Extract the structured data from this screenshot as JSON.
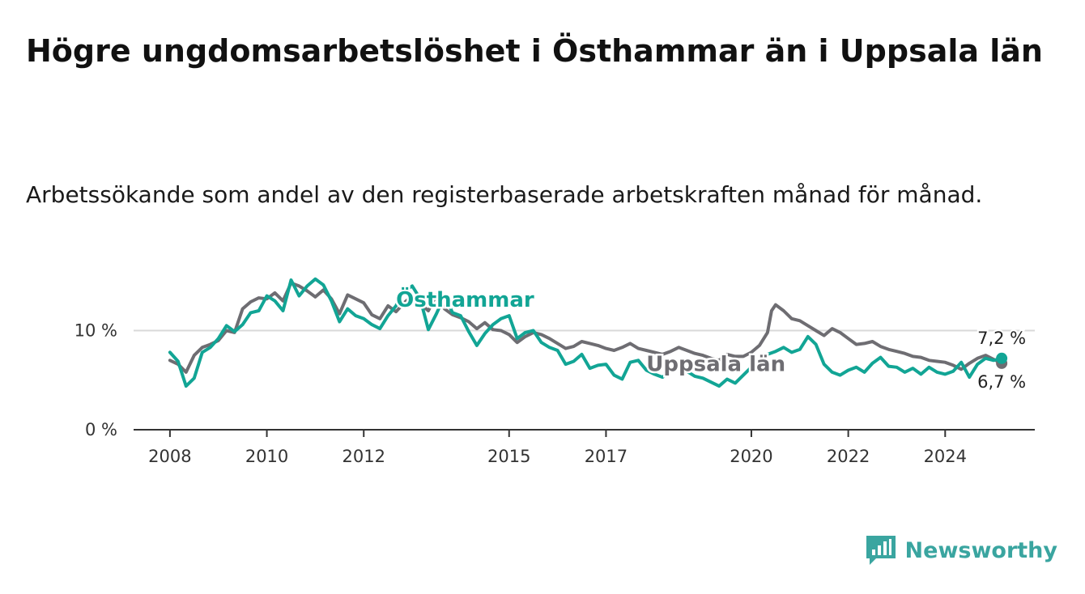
{
  "title": "Högre ungdomsarbetslöshet i Östhammar än i Uppsala län",
  "subtitle": "Arbetssökande som andel av den registerbaserade arbetskraften månad för månad.",
  "brand": {
    "name": "Newsworthy",
    "color": "#3aa5a0"
  },
  "chart_data": {
    "type": "line",
    "title": "Högre ungdomsarbetslöshet i Östhammar än i Uppsala län",
    "subtitle": "Arbetssökande som andel av den registerbaserade arbetskraften månad för månad.",
    "xlabel": "",
    "ylabel": "",
    "x_ticks": [
      "2008",
      "2010",
      "2012",
      "2015",
      "2017",
      "2020",
      "2022",
      "2024"
    ],
    "y_ticks": [
      "0 %",
      "10 %"
    ],
    "ylim": [
      0,
      16
    ],
    "grid": true,
    "series": [
      {
        "name": "Uppsala län",
        "color": "#6e6d72",
        "end_label": "6,7 %",
        "points": [
          [
            "2008-01",
            7.0
          ],
          [
            "2008-03",
            6.6
          ],
          [
            "2008-05",
            5.8
          ],
          [
            "2008-07",
            7.5
          ],
          [
            "2008-09",
            8.3
          ],
          [
            "2008-11",
            8.6
          ],
          [
            "2009-01",
            9.0
          ],
          [
            "2009-03",
            10.0
          ],
          [
            "2009-05",
            9.8
          ],
          [
            "2009-07",
            12.2
          ],
          [
            "2009-09",
            12.9
          ],
          [
            "2009-11",
            13.3
          ],
          [
            "2010-01",
            13.2
          ],
          [
            "2010-03",
            13.8
          ],
          [
            "2010-05",
            13.0
          ],
          [
            "2010-07",
            14.8
          ],
          [
            "2010-09",
            14.5
          ],
          [
            "2010-11",
            14.0
          ],
          [
            "2011-01",
            13.4
          ],
          [
            "2011-03",
            14.1
          ],
          [
            "2011-05",
            13.2
          ],
          [
            "2011-07",
            11.7
          ],
          [
            "2011-09",
            13.6
          ],
          [
            "2011-11",
            13.2
          ],
          [
            "2012-01",
            12.8
          ],
          [
            "2012-03",
            11.6
          ],
          [
            "2012-05",
            11.2
          ],
          [
            "2012-07",
            12.5
          ],
          [
            "2012-09",
            11.9
          ],
          [
            "2012-11",
            12.8
          ],
          [
            "2013-01",
            13.5
          ],
          [
            "2013-03",
            12.7
          ],
          [
            "2013-05",
            12.0
          ],
          [
            "2013-07",
            13.6
          ],
          [
            "2013-09",
            12.2
          ],
          [
            "2013-11",
            11.6
          ],
          [
            "2014-01",
            11.3
          ],
          [
            "2014-03",
            10.9
          ],
          [
            "2014-05",
            10.2
          ],
          [
            "2014-07",
            10.8
          ],
          [
            "2014-09",
            10.1
          ],
          [
            "2014-11",
            10.0
          ],
          [
            "2015-01",
            9.6
          ],
          [
            "2015-03",
            8.8
          ],
          [
            "2015-05",
            9.4
          ],
          [
            "2015-07",
            9.8
          ],
          [
            "2015-09",
            9.6
          ],
          [
            "2015-11",
            9.2
          ],
          [
            "2016-01",
            8.7
          ],
          [
            "2016-03",
            8.2
          ],
          [
            "2016-05",
            8.4
          ],
          [
            "2016-07",
            8.9
          ],
          [
            "2016-09",
            8.7
          ],
          [
            "2016-11",
            8.5
          ],
          [
            "2017-01",
            8.2
          ],
          [
            "2017-03",
            8.0
          ],
          [
            "2017-05",
            8.3
          ],
          [
            "2017-07",
            8.7
          ],
          [
            "2017-09",
            8.2
          ],
          [
            "2017-11",
            8.0
          ],
          [
            "2018-01",
            7.8
          ],
          [
            "2018-03",
            7.6
          ],
          [
            "2018-05",
            7.9
          ],
          [
            "2018-07",
            8.3
          ],
          [
            "2018-09",
            8.0
          ],
          [
            "2018-11",
            7.7
          ],
          [
            "2019-01",
            7.5
          ],
          [
            "2019-03",
            7.2
          ],
          [
            "2019-05",
            7.0
          ],
          [
            "2019-07",
            7.6
          ],
          [
            "2019-09",
            7.4
          ],
          [
            "2019-11",
            7.4
          ],
          [
            "2020-01",
            7.8
          ],
          [
            "2020-03",
            8.5
          ],
          [
            "2020-05",
            9.8
          ],
          [
            "2020-06",
            12.0
          ],
          [
            "2020-07",
            12.6
          ],
          [
            "2020-09",
            12.0
          ],
          [
            "2020-11",
            11.2
          ],
          [
            "2021-01",
            11.0
          ],
          [
            "2021-03",
            10.5
          ],
          [
            "2021-05",
            10.0
          ],
          [
            "2021-07",
            9.5
          ],
          [
            "2021-09",
            10.2
          ],
          [
            "2021-11",
            9.8
          ],
          [
            "2022-01",
            9.2
          ],
          [
            "2022-03",
            8.6
          ],
          [
            "2022-05",
            8.7
          ],
          [
            "2022-07",
            8.9
          ],
          [
            "2022-09",
            8.4
          ],
          [
            "2022-11",
            8.1
          ],
          [
            "2023-01",
            7.9
          ],
          [
            "2023-03",
            7.7
          ],
          [
            "2023-05",
            7.4
          ],
          [
            "2023-07",
            7.3
          ],
          [
            "2023-09",
            7.0
          ],
          [
            "2023-11",
            6.9
          ],
          [
            "2024-01",
            6.8
          ],
          [
            "2024-03",
            6.5
          ],
          [
            "2024-05",
            6.1
          ],
          [
            "2024-07",
            6.7
          ],
          [
            "2024-09",
            7.2
          ],
          [
            "2024-11",
            7.5
          ],
          [
            "2025-01",
            7.1
          ],
          [
            "2025-03",
            6.7
          ]
        ]
      },
      {
        "name": "Östhammar",
        "color": "#12a595",
        "end_label": "7,2 %",
        "points": [
          [
            "2008-01",
            7.8
          ],
          [
            "2008-03",
            6.9
          ],
          [
            "2008-05",
            4.4
          ],
          [
            "2008-07",
            5.2
          ],
          [
            "2008-09",
            7.8
          ],
          [
            "2008-11",
            8.3
          ],
          [
            "2009-01",
            9.2
          ],
          [
            "2009-03",
            10.5
          ],
          [
            "2009-05",
            9.9
          ],
          [
            "2009-07",
            10.6
          ],
          [
            "2009-09",
            11.8
          ],
          [
            "2009-11",
            12.0
          ],
          [
            "2010-01",
            13.5
          ],
          [
            "2010-03",
            13.0
          ],
          [
            "2010-05",
            12.0
          ],
          [
            "2010-07",
            15.1
          ],
          [
            "2010-09",
            13.5
          ],
          [
            "2010-11",
            14.5
          ],
          [
            "2011-01",
            15.2
          ],
          [
            "2011-03",
            14.6
          ],
          [
            "2011-05",
            13.0
          ],
          [
            "2011-07",
            10.9
          ],
          [
            "2011-09",
            12.2
          ],
          [
            "2011-11",
            11.5
          ],
          [
            "2012-01",
            11.2
          ],
          [
            "2012-03",
            10.6
          ],
          [
            "2012-05",
            10.2
          ],
          [
            "2012-07",
            11.5
          ],
          [
            "2012-09",
            12.5
          ],
          [
            "2012-11",
            14.0
          ],
          [
            "2013-01",
            14.5
          ],
          [
            "2013-03",
            13.2
          ],
          [
            "2013-05",
            10.1
          ],
          [
            "2013-07",
            11.7
          ],
          [
            "2013-09",
            13.5
          ],
          [
            "2013-11",
            11.8
          ],
          [
            "2014-01",
            11.5
          ],
          [
            "2014-03",
            9.9
          ],
          [
            "2014-05",
            8.5
          ],
          [
            "2014-07",
            9.7
          ],
          [
            "2014-09",
            10.6
          ],
          [
            "2014-11",
            11.2
          ],
          [
            "2015-01",
            11.5
          ],
          [
            "2015-03",
            9.2
          ],
          [
            "2015-05",
            9.8
          ],
          [
            "2015-07",
            10.0
          ],
          [
            "2015-09",
            8.8
          ],
          [
            "2015-11",
            8.3
          ],
          [
            "2016-01",
            8.0
          ],
          [
            "2016-03",
            6.6
          ],
          [
            "2016-05",
            6.9
          ],
          [
            "2016-07",
            7.6
          ],
          [
            "2016-09",
            6.2
          ],
          [
            "2016-11",
            6.5
          ],
          [
            "2017-01",
            6.6
          ],
          [
            "2017-03",
            5.5
          ],
          [
            "2017-05",
            5.1
          ],
          [
            "2017-07",
            6.8
          ],
          [
            "2017-09",
            7.0
          ],
          [
            "2017-11",
            6.0
          ],
          [
            "2018-01",
            5.6
          ],
          [
            "2018-03",
            5.3
          ],
          [
            "2018-05",
            5.9
          ],
          [
            "2018-07",
            6.5
          ],
          [
            "2018-09",
            5.9
          ],
          [
            "2018-11",
            5.4
          ],
          [
            "2019-01",
            5.2
          ],
          [
            "2019-03",
            4.8
          ],
          [
            "2019-05",
            4.4
          ],
          [
            "2019-07",
            5.1
          ],
          [
            "2019-09",
            4.7
          ],
          [
            "2019-11",
            5.5
          ],
          [
            "2020-01",
            6.3
          ],
          [
            "2020-03",
            7.0
          ],
          [
            "2020-05",
            7.6
          ],
          [
            "2020-07",
            7.9
          ],
          [
            "2020-09",
            8.3
          ],
          [
            "2020-11",
            7.8
          ],
          [
            "2021-01",
            8.1
          ],
          [
            "2021-03",
            9.4
          ],
          [
            "2021-05",
            8.6
          ],
          [
            "2021-07",
            6.6
          ],
          [
            "2021-09",
            5.8
          ],
          [
            "2021-11",
            5.5
          ],
          [
            "2022-01",
            6.0
          ],
          [
            "2022-03",
            6.3
          ],
          [
            "2022-05",
            5.8
          ],
          [
            "2022-07",
            6.7
          ],
          [
            "2022-09",
            7.3
          ],
          [
            "2022-11",
            6.4
          ],
          [
            "2023-01",
            6.3
          ],
          [
            "2023-03",
            5.8
          ],
          [
            "2023-05",
            6.2
          ],
          [
            "2023-07",
            5.6
          ],
          [
            "2023-09",
            6.3
          ],
          [
            "2023-11",
            5.8
          ],
          [
            "2024-01",
            5.6
          ],
          [
            "2024-03",
            5.9
          ],
          [
            "2024-05",
            6.8
          ],
          [
            "2024-07",
            5.3
          ],
          [
            "2024-09",
            6.6
          ],
          [
            "2024-11",
            7.2
          ],
          [
            "2025-01",
            7.0
          ],
          [
            "2025-03",
            7.2
          ]
        ]
      }
    ]
  }
}
